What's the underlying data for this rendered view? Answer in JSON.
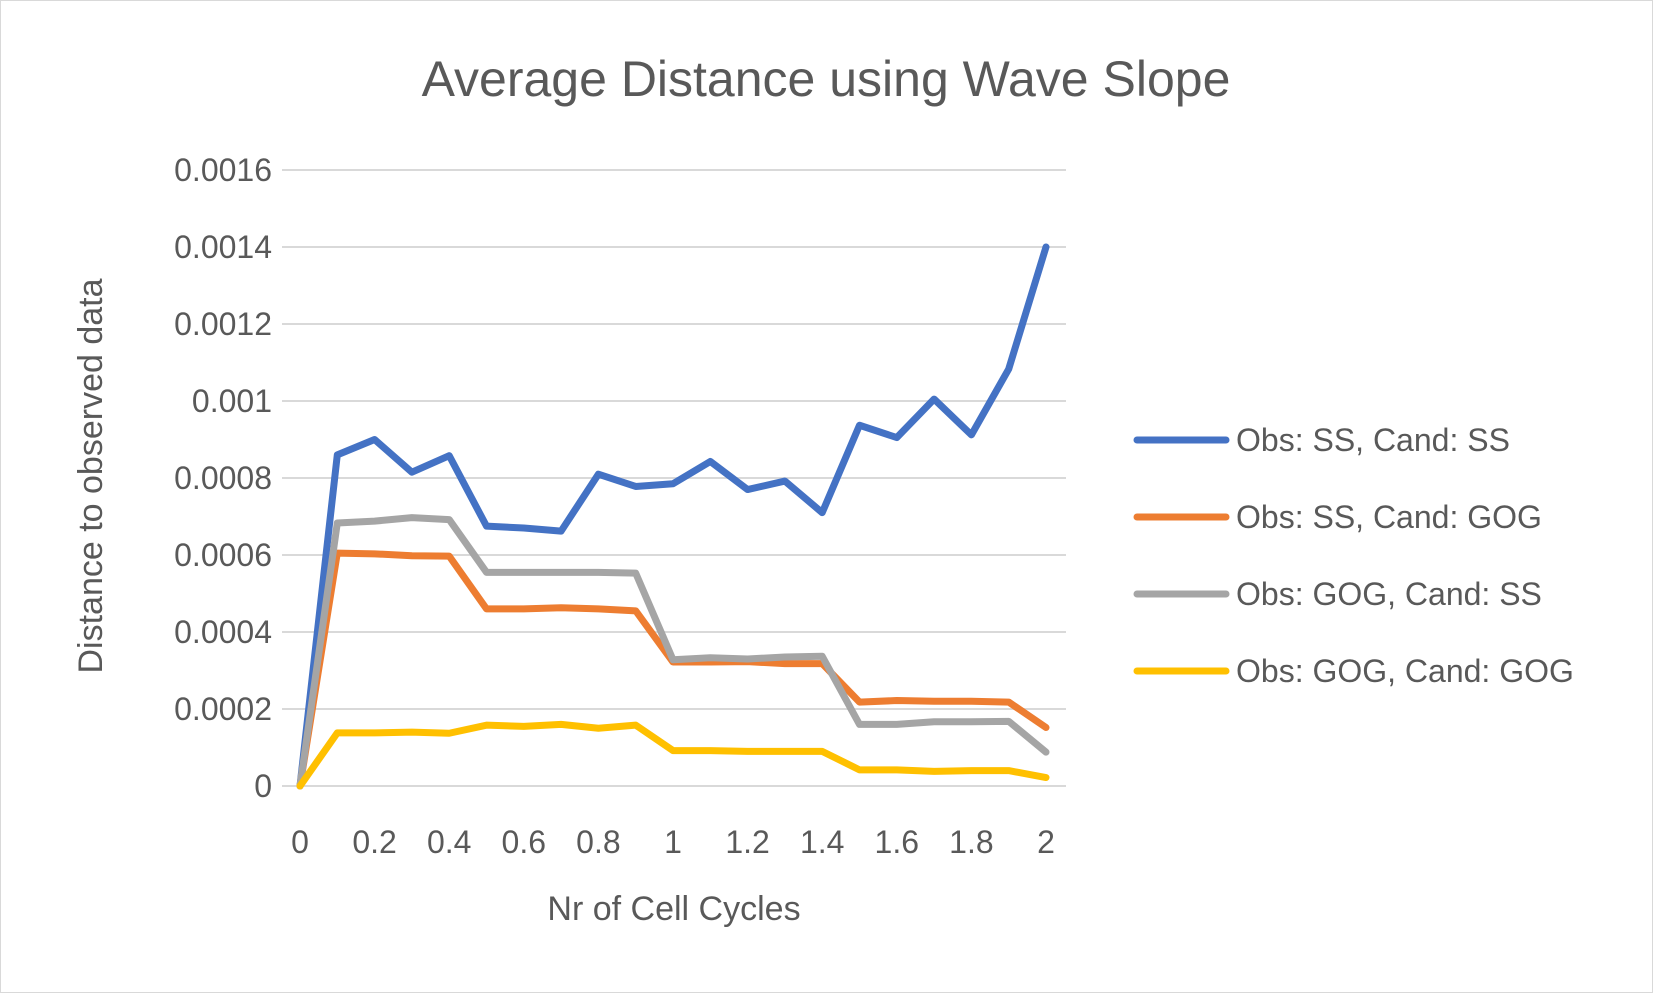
{
  "chart_data": {
    "type": "line",
    "title": "Average Distance using Wave Slope",
    "xlabel": "Nr of Cell Cycles",
    "ylabel": "Distance to observed data",
    "x": [
      0,
      0.1,
      0.2,
      0.3,
      0.4,
      0.5,
      0.6,
      0.7,
      0.8,
      0.9,
      1,
      1.1,
      1.2,
      1.3,
      1.4,
      1.5,
      1.6,
      1.7,
      1.8,
      1.9,
      2
    ],
    "x_ticks": [
      "0",
      "0.2",
      "0.4",
      "0.6",
      "0.8",
      "1",
      "1.2",
      "1.4",
      "1.6",
      "1.8",
      "2"
    ],
    "x_tick_values": [
      0,
      0.2,
      0.4,
      0.6,
      0.8,
      1,
      1.2,
      1.4,
      1.6,
      1.8,
      2
    ],
    "y_ticks": [
      "0",
      "0.0002",
      "0.0004",
      "0.0006",
      "0.0008",
      "0.001",
      "0.0012",
      "0.0014",
      "0.0016"
    ],
    "y_tick_values": [
      0,
      0.0002,
      0.0004,
      0.0006,
      0.0008,
      0.001,
      0.0012,
      0.0014,
      0.0016
    ],
    "xlim": [
      0,
      2
    ],
    "ylim": [
      0,
      0.0016
    ],
    "grid": "horizontal",
    "legend_position": "right",
    "series": [
      {
        "name": "Obs: SS, Cand: SS",
        "color": "#4472c4",
        "values": [
          0,
          0.00086,
          0.0009,
          0.000815,
          0.000858,
          0.000675,
          0.00067,
          0.000662,
          0.00081,
          0.000778,
          0.000785,
          0.000843,
          0.00077,
          0.000792,
          0.00071,
          0.000937,
          0.000905,
          0.001005,
          0.000912,
          0.001083,
          0.0014
        ]
      },
      {
        "name": "Obs: SS, Cand: GOG",
        "color": "#ed7d31",
        "values": [
          0,
          0.000605,
          0.000603,
          0.000598,
          0.000597,
          0.00046,
          0.00046,
          0.000463,
          0.00046,
          0.000455,
          0.000322,
          0.000322,
          0.000323,
          0.000318,
          0.000318,
          0.000218,
          0.000222,
          0.00022,
          0.00022,
          0.000218,
          0.000152
        ]
      },
      {
        "name": "Obs: GOG, Cand: SS",
        "color": "#a5a5a5",
        "values": [
          0,
          0.000683,
          0.000688,
          0.000697,
          0.000692,
          0.000555,
          0.000555,
          0.000555,
          0.000555,
          0.000553,
          0.000328,
          0.000333,
          0.00033,
          0.000335,
          0.000337,
          0.00016,
          0.00016,
          0.000167,
          0.000167,
          0.000168,
          8.8e-05
        ]
      },
      {
        "name": "Obs: GOG, Cand: GOG",
        "color": "#ffc000",
        "values": [
          0,
          0.000138,
          0.000138,
          0.00014,
          0.000137,
          0.000158,
          0.000155,
          0.00016,
          0.00015,
          0.000158,
          9.2e-05,
          9.2e-05,
          9e-05,
          9e-05,
          9e-05,
          4.2e-05,
          4.2e-05,
          3.8e-05,
          4e-05,
          4e-05,
          2.2e-05
        ]
      }
    ]
  }
}
